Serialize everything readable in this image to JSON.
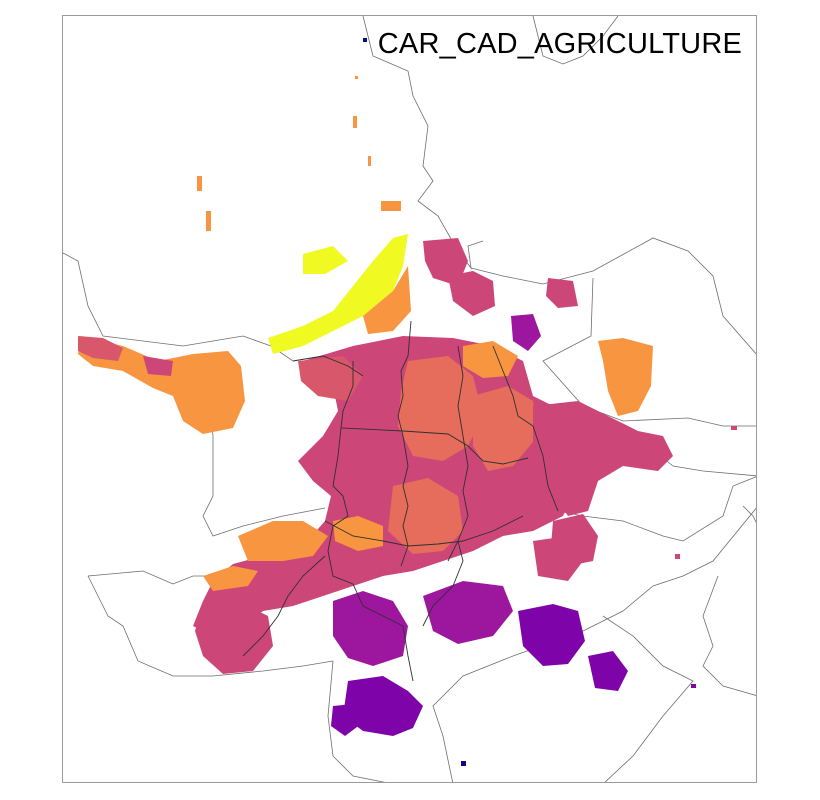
{
  "map": {
    "title": "CAR_CAD_AGRICULTURE",
    "colormap": "plasma",
    "palette": {
      "deep-navy": "#0d0887",
      "violet": "#7e03a8",
      "purple": "#9c179e",
      "magenta": "#cc4778",
      "rose": "#d8576b",
      "salmon": "#e66c5c",
      "orange": "#f89540",
      "amber": "#fdb42f",
      "yellow": "#f0f921",
      "boundary-line": "#6e6e6e",
      "inner-boundary-line": "#303030",
      "frame": "#9a9a9a"
    }
  }
}
